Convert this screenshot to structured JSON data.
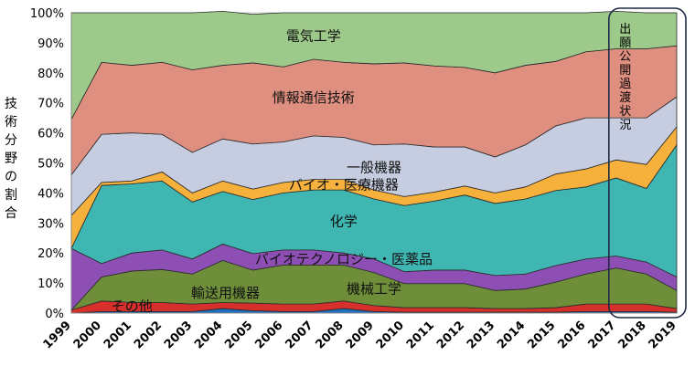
{
  "chart_data": {
    "type": "area",
    "stacked": true,
    "ylabel": "技術分野の割合",
    "ylim": [
      0,
      100
    ],
    "yticks": [
      "0%",
      "10%",
      "20%",
      "30%",
      "40%",
      "50%",
      "60%",
      "70%",
      "80%",
      "90%",
      "100%"
    ],
    "x": [
      "1999",
      "2000",
      "2001",
      "2002",
      "2003",
      "2004",
      "2005",
      "2006",
      "2007",
      "2008",
      "2009",
      "2010",
      "2011",
      "2012",
      "2013",
      "2014",
      "2015",
      "2016",
      "2017",
      "2018",
      "2019"
    ],
    "grid": true,
    "annotation": "出願公開過渡状況",
    "series": [
      {
        "name": "その他",
        "color": "#1f6fbf",
        "values": [
          0,
          0.5,
          0.5,
          0.5,
          0.5,
          1.5,
          0.8,
          0.5,
          0.5,
          1.5,
          0.5,
          0.3,
          0.3,
          0.3,
          0.3,
          0.3,
          0.3,
          0.5,
          0.5,
          0.5,
          0.3
        ]
      },
      {
        "name": "輸送用機器",
        "color": "#d7302c",
        "values": [
          1,
          3.5,
          3,
          3,
          2.5,
          2,
          2.5,
          2.5,
          2.5,
          2.5,
          2,
          1.5,
          1.5,
          1.5,
          1.2,
          1.2,
          1.5,
          2.5,
          2.5,
          2.5,
          1.2
        ]
      },
      {
        "name": "機械工学",
        "color": "#6e8e3a",
        "values": [
          0,
          8,
          10.5,
          11,
          10,
          14,
          11,
          13,
          13,
          12,
          11,
          8,
          8,
          8,
          6,
          6.5,
          8.5,
          10,
          12,
          10,
          6
        ]
      },
      {
        "name": "バイオテクノロジー・医薬品",
        "color": "#8e4fb5",
        "values": [
          20.5,
          4.5,
          6,
          6.5,
          5,
          5.5,
          5.5,
          5,
          5,
          4,
          4.5,
          4,
          4.5,
          4.5,
          5,
          5,
          5.5,
          5,
          4,
          4,
          4.5
        ]
      },
      {
        "name": "化学",
        "color": "#3fb6b2",
        "values": [
          0,
          26,
          23,
          23,
          19,
          17.5,
          18,
          19,
          20,
          21,
          20,
          22,
          23,
          25,
          24,
          25,
          25,
          24,
          26,
          24.5,
          44
        ]
      },
      {
        "name": "バイオ・医療機器",
        "color": "#f6b03c",
        "values": [
          11,
          1,
          1,
          3,
          3,
          3.5,
          3.5,
          3.5,
          3.5,
          3.5,
          3,
          3,
          3,
          3,
          3.5,
          4,
          5.5,
          6,
          6,
          8,
          6
        ]
      },
      {
        "name": "一般機器",
        "color": "#c6cde0",
        "values": [
          13.5,
          16,
          16,
          12.5,
          13.5,
          14,
          15,
          13.5,
          14.5,
          14,
          15,
          17.5,
          15,
          13,
          12,
          14,
          16,
          17,
          14,
          15.5,
          10
        ]
      },
      {
        "name": "情報通信技術",
        "color": "#df8f80",
        "values": [
          18.5,
          24,
          22.5,
          24,
          27.5,
          24.5,
          27,
          25,
          25.5,
          25,
          27,
          27,
          27,
          26.5,
          28,
          26.5,
          21.5,
          22,
          23,
          23,
          17
        ]
      },
      {
        "name": "電気工学",
        "color": "#9dc98a",
        "values": [
          35.5,
          16.5,
          17.5,
          16.5,
          19,
          18,
          16.2,
          18,
          15.5,
          16.5,
          17,
          16.7,
          17.7,
          18.2,
          20,
          17.5,
          16.2,
          13,
          12.5,
          12,
          11
        ]
      }
    ]
  }
}
